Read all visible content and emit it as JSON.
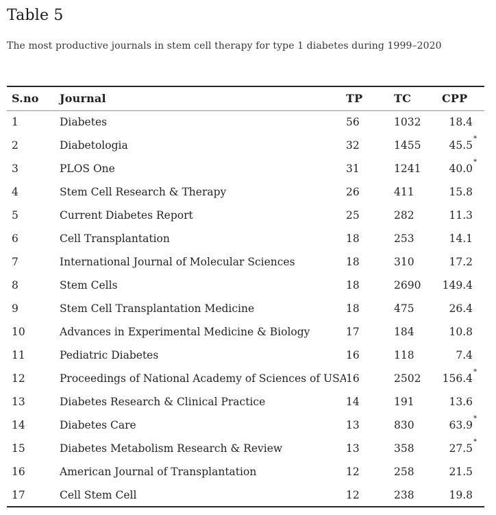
{
  "header": {
    "title": "Table 5",
    "caption": "The most productive journals in stem cell therapy for type 1 diabetes during 1999–2020"
  },
  "table": {
    "columns": [
      "S.no",
      "Journal",
      "TP",
      "TC",
      "CPP"
    ],
    "rows": [
      {
        "sno": "1",
        "journal": "Diabetes",
        "tp": "56",
        "tc": "1032",
        "cpp": "18.4",
        "star": ""
      },
      {
        "sno": "2",
        "journal": "Diabetologia",
        "tp": "32",
        "tc": "1455",
        "cpp": "45.5",
        "star": "*"
      },
      {
        "sno": "3",
        "journal": "PLOS One",
        "tp": "31",
        "tc": "1241",
        "cpp": "40.0",
        "star": "*"
      },
      {
        "sno": "4",
        "journal": "Stem Cell Research & Therapy",
        "tp": "26",
        "tc": "411",
        "cpp": "15.8",
        "star": ""
      },
      {
        "sno": "5",
        "journal": "Current Diabetes Report",
        "tp": "25",
        "tc": "282",
        "cpp": "11.3",
        "star": ""
      },
      {
        "sno": "6",
        "journal": "Cell Transplantation",
        "tp": "18",
        "tc": "253",
        "cpp": "14.1",
        "star": ""
      },
      {
        "sno": "7",
        "journal": "International Journal of Molecular Sciences",
        "tp": "18",
        "tc": "310",
        "cpp": "17.2",
        "star": ""
      },
      {
        "sno": "8",
        "journal": "Stem Cells",
        "tp": "18",
        "tc": "2690",
        "cpp": "149.4",
        "star": ""
      },
      {
        "sno": "9",
        "journal": "Stem Cell Transplantation Medicine",
        "tp": "18",
        "tc": "475",
        "cpp": "26.4",
        "star": ""
      },
      {
        "sno": "10",
        "journal": "Advances in Experimental Medicine & Biology",
        "tp": "17",
        "tc": "184",
        "cpp": "10.8",
        "star": ""
      },
      {
        "sno": "11",
        "journal": "Pediatric Diabetes",
        "tp": "16",
        "tc": "118",
        "cpp": "7.4",
        "star": ""
      },
      {
        "sno": "12",
        "journal": "Proceedings of National Academy of Sciences of USA",
        "tp": "16",
        "tc": "2502",
        "cpp": "156.4",
        "star": "*"
      },
      {
        "sno": "13",
        "journal": "Diabetes Research & Clinical Practice",
        "tp": "14",
        "tc": "191",
        "cpp": "13.6",
        "star": ""
      },
      {
        "sno": "14",
        "journal": "Diabetes Care",
        "tp": "13",
        "tc": "830",
        "cpp": "63.9",
        "star": "*"
      },
      {
        "sno": "15",
        "journal": "Diabetes Metabolism Research & Review",
        "tp": "13",
        "tc": "358",
        "cpp": "27.5",
        "star": "*"
      },
      {
        "sno": "16",
        "journal": "American Journal of Transplantation",
        "tp": "12",
        "tc": "258",
        "cpp": "21.5",
        "star": ""
      },
      {
        "sno": "17",
        "journal": "Cell Stem Cell",
        "tp": "12",
        "tc": "238",
        "cpp": "19.8",
        "star": ""
      }
    ]
  },
  "colors": {
    "text": "#242424",
    "title": "#181818",
    "border_strong": "#262626",
    "border_header": "#8f8f8f",
    "background": "#ffffff"
  }
}
